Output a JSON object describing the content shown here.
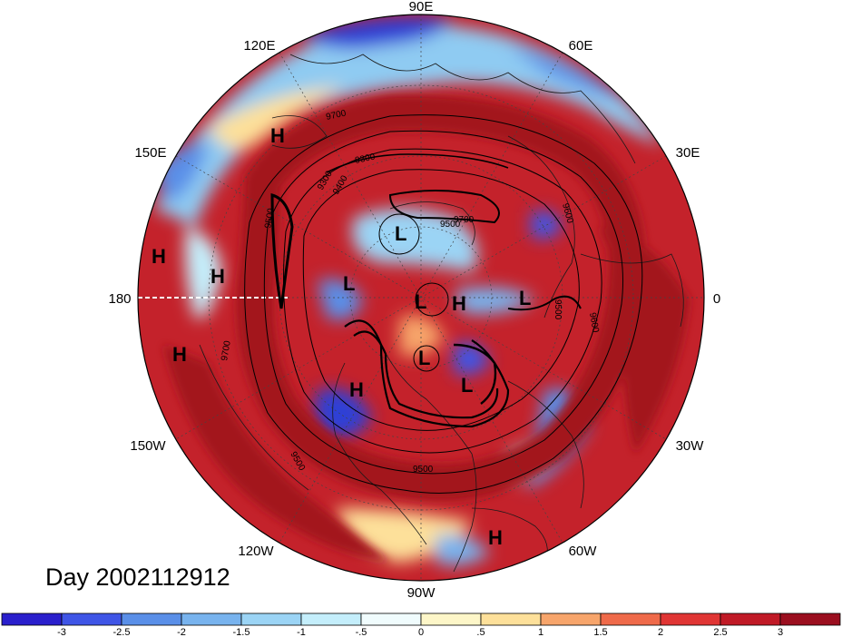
{
  "longitude_labels": {
    "lon_90e": "90E",
    "lon_120e": "120E",
    "lon_60e": "60E",
    "lon_150e": "150E",
    "lon_30e": "30E",
    "lon_180": "180",
    "lon_0": "0",
    "lon_150w": "150W",
    "lon_30w": "30W",
    "lon_120w": "120W",
    "lon_60w": "60W",
    "lon_90w": "90W"
  },
  "pressure_centers": [
    "H",
    "H",
    "H",
    "H",
    "L",
    "L",
    "L",
    "H",
    "L",
    "L",
    "H",
    "L",
    "H"
  ],
  "contour_labels": [
    "9700",
    "9300",
    "9300",
    "9400",
    "9500",
    "9500",
    "9700",
    "9600",
    "9500",
    "9600",
    "9700",
    "9500",
    "9500"
  ],
  "date_label": "Day 2002112912",
  "colorbar": {
    "ticks": [
      "-3",
      "-2.5",
      "-2",
      "-1.5",
      "-1",
      "-.5",
      "0",
      ".5",
      "1",
      "1.5",
      "2",
      "2.5",
      "3"
    ],
    "colors": [
      "#2a1fcc",
      "#3f55e6",
      "#5a8fe8",
      "#78b3ee",
      "#9bd4f5",
      "#c4eefb",
      "#f0fcfd",
      "#fdf6c8",
      "#fde09a",
      "#f7a56b",
      "#ef6a4a",
      "#e03534",
      "#c01a26",
      "#9b0f1f"
    ]
  },
  "colors": {
    "max_anomaly": "#a3121f",
    "min_anomaly": "#2a1fcc",
    "contour": "#000000"
  }
}
